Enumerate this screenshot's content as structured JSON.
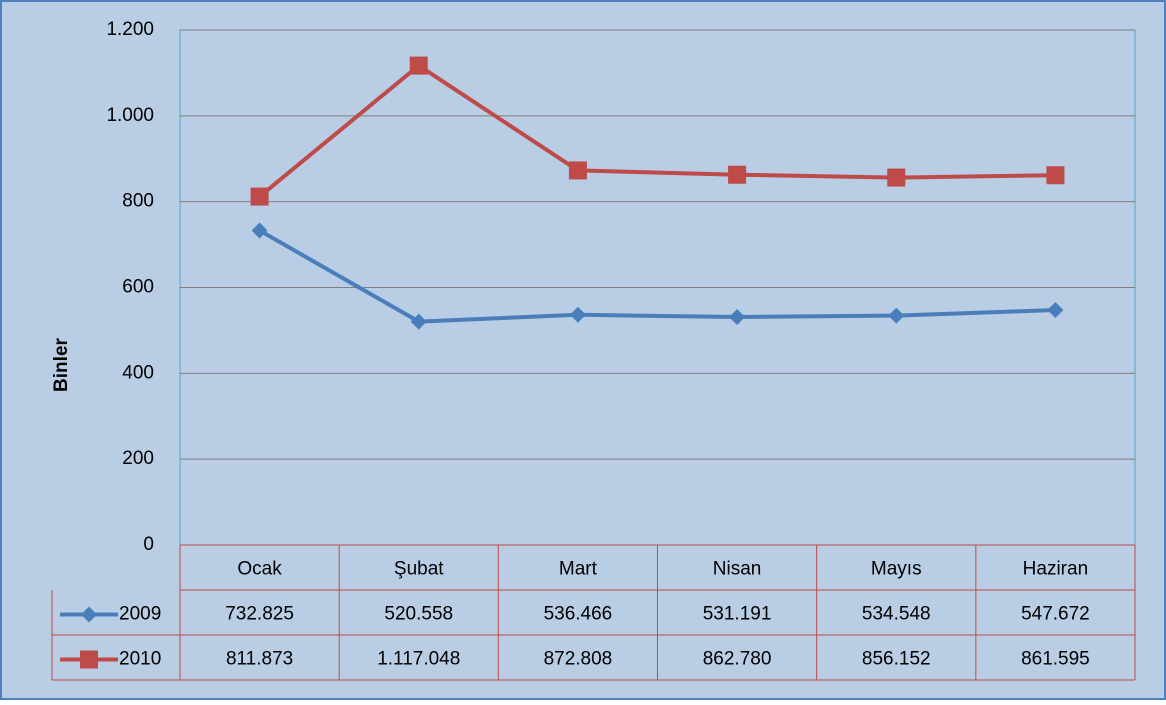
{
  "chart_data": {
    "type": "line",
    "y_label": "Binler",
    "categories": [
      "Ocak",
      "Şubat",
      "Mart",
      "Nisan",
      "Mayıs",
      "Haziran"
    ],
    "series": [
      {
        "name": "2009",
        "color": "#4a7ebb",
        "marker": "diamond",
        "values": [
          732.825,
          520.558,
          536.466,
          531.191,
          534.548,
          547.672
        ],
        "value_labels": [
          "732.825",
          "520.558",
          "536.466",
          "531.191",
          "534.548",
          "547.672"
        ]
      },
      {
        "name": "2010",
        "color": "#be4b48",
        "marker": "square",
        "values": [
          811.873,
          1117.048,
          872.808,
          862.78,
          856.152,
          861.595
        ],
        "value_labels": [
          "811.873",
          "1.117.048",
          "872.808",
          "862.780",
          "856.152",
          "861.595"
        ]
      }
    ],
    "ylim": [
      0,
      1200
    ],
    "yticks": [
      0,
      200,
      400,
      600,
      800,
      {
        "value": 1000,
        "label": "1.000"
      },
      {
        "value": 1200,
        "label": "1.200"
      }
    ],
    "grid": true,
    "legend": "table"
  }
}
